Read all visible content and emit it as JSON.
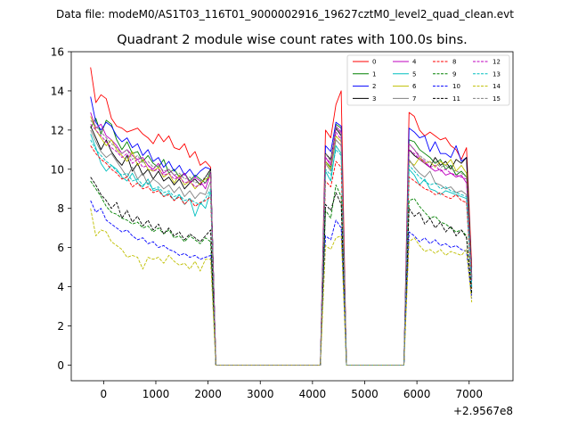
{
  "chart_data": {
    "type": "line",
    "suptitle": "Data file: modeM0/AS1T03_116T01_9000002916_19627cztM0_level2_quad_clean.evt",
    "title": "Quadrant 2 module wise count rates with 100.0s bins.",
    "xlabel": "",
    "ylabel": "",
    "x_offset_label": "+2.9567e8",
    "xlim": [
      -620,
      7840
    ],
    "ylim": [
      -0.8,
      16
    ],
    "xticks": [
      0,
      1000,
      2000,
      3000,
      4000,
      5000,
      6000,
      7000
    ],
    "xtick_labels": [
      "0",
      "1000",
      "2000",
      "3000",
      "4000",
      "5000",
      "6000",
      "7000"
    ],
    "yticks": [
      0,
      2,
      4,
      6,
      8,
      10,
      12,
      14,
      16
    ],
    "ytick_labels": [
      "0",
      "2",
      "4",
      "6",
      "8",
      "10",
      "12",
      "14",
      "16"
    ],
    "grid": false,
    "legend_position": "top-right",
    "legend_columns": 4,
    "x": [
      -250,
      -150,
      -50,
      50,
      150,
      250,
      350,
      450,
      550,
      650,
      750,
      850,
      950,
      1050,
      1150,
      1250,
      1350,
      1450,
      1550,
      1650,
      1750,
      1850,
      1950,
      2050,
      2150,
      2250,
      2350,
      2450,
      2550,
      2650,
      2750,
      2850,
      2950,
      3050,
      3150,
      3250,
      3350,
      3450,
      3550,
      3650,
      3750,
      3850,
      3950,
      4050,
      4150,
      4250,
      4350,
      4450,
      4550,
      4650,
      4750,
      4850,
      4950,
      5050,
      5150,
      5250,
      5350,
      5450,
      5550,
      5650,
      5750,
      5850,
      5950,
      6050,
      6150,
      6250,
      6350,
      6450,
      6550,
      6650,
      6750,
      6850,
      6950,
      7050,
      7150,
      7250,
      7350,
      7450
    ],
    "series": [
      {
        "name": "0",
        "color": "#ff0000",
        "dash": "solid",
        "levels": [
          15.2,
          13.4,
          13.8,
          13.6,
          12.6,
          12.2,
          12.1,
          11.9,
          12.0,
          12.1,
          11.8,
          11.6,
          11.3,
          11.8,
          11.4,
          11.7,
          11.1,
          11.0,
          11.3,
          10.6,
          10.9,
          10.2,
          10.4,
          10.1,
          12.0,
          11.6,
          13.3,
          14.0,
          12.9,
          12.7,
          12.0,
          11.7,
          11.9,
          11.7,
          11.5,
          11.6,
          11.2,
          11.0,
          10.5,
          11.1,
          5.0
        ]
      },
      {
        "name": "1",
        "color": "#008000",
        "dash": "solid",
        "levels": [
          12.1,
          12.6,
          11.8,
          12.5,
          12.3,
          11.5,
          11.0,
          11.4,
          10.8,
          10.9,
          10.4,
          10.7,
          10.3,
          10.1,
          10.5,
          9.8,
          10.0,
          9.6,
          9.8,
          9.4,
          9.7,
          9.5,
          9.3,
          9.9,
          10.4,
          10.1,
          12.3,
          12.1,
          11.5,
          11.4,
          11.0,
          10.8,
          10.6,
          10.3,
          10.5,
          10.0,
          10.2,
          9.7,
          9.9,
          9.6,
          4.6
        ]
      },
      {
        "name": "2",
        "color": "#0000ff",
        "dash": "solid",
        "levels": [
          13.7,
          12.4,
          12.0,
          12.4,
          12.2,
          11.7,
          11.4,
          11.6,
          11.1,
          11.3,
          10.7,
          11.0,
          10.4,
          10.6,
          10.1,
          10.4,
          9.9,
          10.2,
          9.7,
          10.0,
          9.6,
          9.9,
          10.1,
          10.0,
          11.2,
          10.9,
          12.4,
          12.2,
          12.1,
          11.9,
          11.6,
          11.7,
          10.9,
          11.4,
          10.8,
          10.8,
          10.6,
          11.2,
          10.4,
          10.6,
          4.5
        ]
      },
      {
        "name": "3",
        "color": "#000000",
        "dash": "solid",
        "levels": [
          12.2,
          11.6,
          11.0,
          11.5,
          10.9,
          10.5,
          10.2,
          10.7,
          9.9,
          10.3,
          9.7,
          10.0,
          9.5,
          9.9,
          9.4,
          9.6,
          9.2,
          9.5,
          9.0,
          9.3,
          9.5,
          9.2,
          9.6,
          10.0,
          10.8,
          10.5,
          12.1,
          11.7,
          11.0,
          10.7,
          10.5,
          10.3,
          10.1,
          10.6,
          10.2,
          10.4,
          10.0,
          10.5,
          10.3,
          10.6,
          4.5
        ]
      },
      {
        "name": "4",
        "color": "#bf00bf",
        "dash": "solid",
        "levels": [
          12.9,
          12.1,
          12.3,
          11.7,
          11.5,
          11.2,
          10.8,
          11.0,
          10.7,
          10.5,
          10.6,
          10.2,
          10.0,
          10.3,
          9.8,
          10.0,
          9.7,
          9.5,
          9.8,
          9.3,
          9.6,
          9.4,
          9.0,
          9.8,
          10.6,
          10.2,
          12.2,
          11.9,
          11.3,
          11.0,
          10.6,
          10.4,
          10.1,
          9.9,
          10.0,
          9.7,
          9.8,
          9.6,
          9.7,
          9.3,
          4.4
        ]
      },
      {
        "name": "5",
        "color": "#00bfbf",
        "dash": "solid",
        "levels": [
          11.8,
          11.1,
          10.3,
          9.9,
          10.2,
          10.0,
          9.6,
          9.4,
          9.8,
          9.3,
          9.1,
          9.5,
          8.9,
          9.0,
          8.6,
          8.8,
          8.4,
          8.7,
          8.2,
          8.5,
          7.6,
          8.3,
          8.0,
          8.9,
          9.9,
          9.4,
          11.2,
          10.8,
          10.0,
          9.7,
          9.2,
          9.5,
          9.0,
          8.9,
          8.7,
          8.9,
          8.8,
          8.7,
          8.6,
          8.5,
          4.0
        ]
      },
      {
        "name": "6",
        "color": "#bfbf00",
        "dash": "solid",
        "levels": [
          12.7,
          12.0,
          11.6,
          11.2,
          11.5,
          11.0,
          10.7,
          10.4,
          10.9,
          10.2,
          10.5,
          10.0,
          9.9,
          10.1,
          9.6,
          9.8,
          9.3,
          9.7,
          9.2,
          9.4,
          9.0,
          9.3,
          9.5,
          9.6,
          10.4,
          10.0,
          11.7,
          11.4,
          10.4,
          10.2,
          10.6,
          10.3,
          10.4,
          10.1,
          10.4,
          10.2,
          10.5,
          9.9,
          10.2,
          9.8,
          4.3
        ]
      },
      {
        "name": "7",
        "color": "#808080",
        "dash": "solid",
        "levels": [
          12.0,
          11.4,
          10.9,
          10.6,
          10.8,
          10.4,
          10.0,
          9.6,
          10.1,
          9.5,
          9.8,
          9.2,
          9.5,
          9.3,
          9.0,
          9.2,
          8.8,
          9.1,
          8.6,
          8.9,
          8.5,
          8.8,
          8.7,
          9.4,
          10.3,
          9.9,
          11.5,
          11.2,
          10.5,
          10.1,
          9.8,
          9.6,
          9.9,
          9.3,
          9.2,
          9.0,
          9.1,
          8.8,
          8.9,
          8.7,
          4.1
        ]
      },
      {
        "name": "8",
        "color": "#ff0000",
        "dash": "dashed",
        "levels": [
          11.2,
          10.8,
          10.5,
          10.3,
          10.0,
          9.8,
          9.5,
          9.6,
          9.1,
          9.3,
          9.0,
          9.1,
          8.8,
          8.9,
          8.6,
          8.7,
          8.4,
          8.6,
          8.2,
          8.5,
          8.1,
          8.3,
          8.4,
          8.6,
          9.4,
          9.1,
          10.4,
          10.1,
          9.6,
          9.4,
          9.2,
          9.0,
          8.9,
          8.7,
          8.8,
          8.6,
          8.5,
          8.7,
          8.4,
          8.3,
          3.9
        ]
      },
      {
        "name": "9",
        "color": "#008000",
        "dash": "dashed",
        "levels": [
          9.4,
          9.0,
          8.6,
          8.1,
          7.8,
          7.7,
          7.5,
          7.4,
          7.2,
          7.3,
          7.0,
          7.1,
          6.8,
          7.0,
          6.7,
          6.9,
          6.5,
          6.6,
          6.3,
          6.6,
          6.4,
          6.2,
          6.5,
          6.3,
          7.9,
          7.5,
          9.2,
          8.6,
          8.4,
          8.5,
          8.1,
          7.8,
          7.5,
          7.6,
          7.3,
          7.2,
          7.0,
          6.8,
          6.9,
          6.6,
          3.7
        ]
      },
      {
        "name": "10",
        "color": "#0000ff",
        "dash": "dashed",
        "levels": [
          8.4,
          7.8,
          8.0,
          7.4,
          7.2,
          7.0,
          6.8,
          6.9,
          6.6,
          6.4,
          6.5,
          6.2,
          6.3,
          6.0,
          6.1,
          5.9,
          5.8,
          5.6,
          5.7,
          5.5,
          5.6,
          5.4,
          5.5,
          5.6,
          6.6,
          6.4,
          7.4,
          7.0,
          6.8,
          6.6,
          6.3,
          6.5,
          6.2,
          6.4,
          6.1,
          6.2,
          6.0,
          6.1,
          5.9,
          5.8,
          3.4
        ]
      },
      {
        "name": "11",
        "color": "#000000",
        "dash": "dashed",
        "levels": [
          9.6,
          9.2,
          8.7,
          8.4,
          8.0,
          8.3,
          7.5,
          7.9,
          7.3,
          7.6,
          7.1,
          7.4,
          6.9,
          7.2,
          6.7,
          7.0,
          6.6,
          6.8,
          6.4,
          6.7,
          6.5,
          6.3,
          6.6,
          6.9,
          8.2,
          7.9,
          8.8,
          8.2,
          8.0,
          7.6,
          7.8,
          7.2,
          7.5,
          7.0,
          7.3,
          6.8,
          7.1,
          6.6,
          6.9,
          6.5,
          3.6
        ]
      },
      {
        "name": "12",
        "color": "#bf00bf",
        "dash": "dashed",
        "levels": [
          12.3,
          12.0,
          11.7,
          11.4,
          11.1,
          10.9,
          10.6,
          10.8,
          10.3,
          10.5,
          10.1,
          10.2,
          9.9,
          10.0,
          9.7,
          9.8,
          9.5,
          9.6,
          9.3,
          9.4,
          9.1,
          9.2,
          9.3,
          9.7,
          10.6,
          10.3,
          11.9,
          11.5,
          11.0,
          10.8,
          10.5,
          10.3,
          10.1,
          10.2,
          9.9,
          10.0,
          9.8,
          9.7,
          9.6,
          9.5,
          4.3
        ]
      },
      {
        "name": "13",
        "color": "#00bfbf",
        "dash": "dashed",
        "levels": [
          11.5,
          11.0,
          10.7,
          10.4,
          10.2,
          9.9,
          9.7,
          9.8,
          9.4,
          9.5,
          9.2,
          9.3,
          9.0,
          9.1,
          8.8,
          8.9,
          8.6,
          8.7,
          8.4,
          8.5,
          8.3,
          8.2,
          8.5,
          9.0,
          10.0,
          9.7,
          11.0,
          10.7,
          10.2,
          9.9,
          9.6,
          9.4,
          9.2,
          9.3,
          9.0,
          9.1,
          8.9,
          8.8,
          8.7,
          8.6,
          4.0
        ]
      },
      {
        "name": "14",
        "color": "#bfbf00",
        "dash": "dashed",
        "levels": [
          8.0,
          6.6,
          6.9,
          6.8,
          6.3,
          6.1,
          5.9,
          5.5,
          5.6,
          5.5,
          4.9,
          5.5,
          5.4,
          5.5,
          5.2,
          5.6,
          5.3,
          5.1,
          5.2,
          4.9,
          5.3,
          4.8,
          5.4,
          5.4,
          6.1,
          5.9,
          6.5,
          6.6,
          6.3,
          6.5,
          6.1,
          5.8,
          5.9,
          5.7,
          5.9,
          5.6,
          5.8,
          5.7,
          5.6,
          5.9,
          3.2
        ]
      },
      {
        "name": "15",
        "color": "#808080",
        "dash": "dashed",
        "levels": [
          12.5,
          12.2,
          11.9,
          11.6,
          11.3,
          11.1,
          10.8,
          11.0,
          10.5,
          10.7,
          10.3,
          10.4,
          10.1,
          10.2,
          9.9,
          10.0,
          9.7,
          9.8,
          9.5,
          9.6,
          9.3,
          9.4,
          9.6,
          9.9,
          10.8,
          10.4,
          12.2,
          11.8,
          11.3,
          11.0,
          10.7,
          10.5,
          10.3,
          10.4,
          10.1,
          10.2,
          10.0,
          9.9,
          9.8,
          9.6,
          4.4
        ]
      }
    ]
  }
}
